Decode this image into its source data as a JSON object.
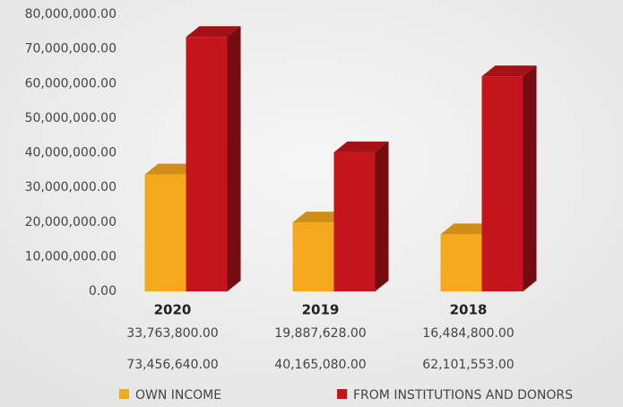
{
  "chart_data": {
    "type": "bar3d",
    "categories": [
      "2020",
      "2019",
      "2018"
    ],
    "series": [
      {
        "name": "OWN INCOME",
        "color": "#f4a81c",
        "values": [
          33763800,
          19887628,
          16484800
        ],
        "value_labels": [
          "33,763,800.00",
          "19,887,628.00",
          "16,484,800.00"
        ]
      },
      {
        "name": "FROM INSTITUTIONS AND DONORS",
        "color": "#c3151b",
        "values": [
          73456640,
          40165080,
          62101553
        ],
        "value_labels": [
          "73,456,640.00",
          "40,165,080.00",
          "62,101,553.00"
        ]
      }
    ],
    "ylim": [
      0,
      80000000
    ],
    "yticks": [
      {
        "value": 0,
        "label": "0.00"
      },
      {
        "value": 10000000,
        "label": "10,000,000.00"
      },
      {
        "value": 20000000,
        "label": "20,000,000.00"
      },
      {
        "value": 30000000,
        "label": "30,000,000.00"
      },
      {
        "value": 40000000,
        "label": "40,000,000.00"
      },
      {
        "value": 50000000,
        "label": "50,000,000.00"
      },
      {
        "value": 60000000,
        "label": "60,000,000.00"
      },
      {
        "value": 70000000,
        "label": "70,000,000.00"
      },
      {
        "value": 80000000,
        "label": "80,000,000.00"
      }
    ]
  }
}
